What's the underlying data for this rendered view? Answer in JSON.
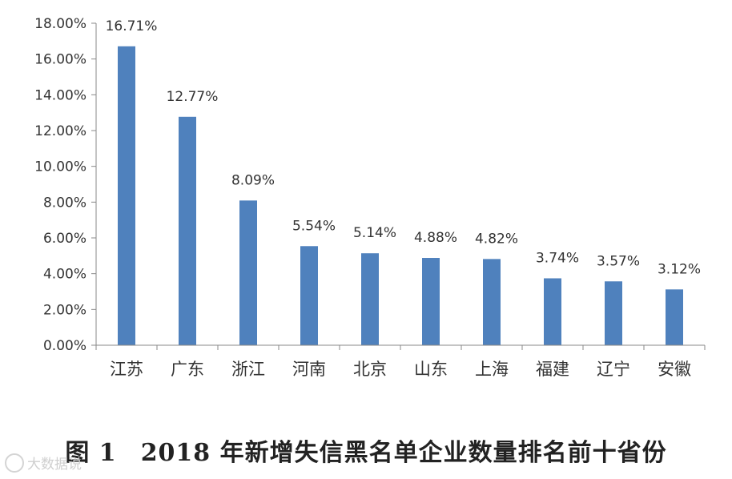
{
  "chart_data": {
    "type": "bar",
    "categories": [
      "江苏",
      "广东",
      "浙江",
      "河南",
      "北京",
      "山东",
      "上海",
      "福建",
      "辽宁",
      "安徽"
    ],
    "values": [
      16.71,
      12.77,
      8.09,
      5.54,
      5.14,
      4.88,
      4.82,
      3.74,
      3.57,
      3.12
    ],
    "data_labels": [
      "16.71%",
      "12.77%",
      "8.09%",
      "5.54%",
      "5.14%",
      "4.88%",
      "4.82%",
      "3.74%",
      "3.57%",
      "3.12%"
    ],
    "ylim": [
      0,
      18
    ],
    "yticks": [
      0,
      2,
      4,
      6,
      8,
      10,
      12,
      14,
      16,
      18
    ],
    "ytick_labels": [
      "0.00%",
      "2.00%",
      "4.00%",
      "6.00%",
      "8.00%",
      "10.00%",
      "12.00%",
      "14.00%",
      "16.00%",
      "18.00%"
    ],
    "xlabel": "",
    "ylabel": "",
    "grid": false,
    "bar_color": "#4f81bd"
  },
  "caption": {
    "figure_number": "图 1",
    "title": "2018 年新增失信黑名单企业数量排名前十省份"
  },
  "watermark": {
    "text": "大数据说"
  }
}
